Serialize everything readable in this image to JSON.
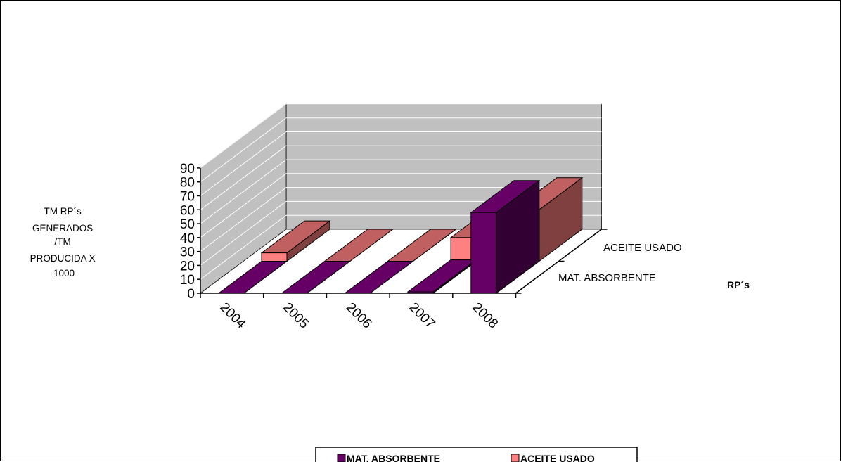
{
  "chart_data": {
    "type": "bar",
    "projection": "3d-stacked-rows",
    "title": "",
    "categories": [
      "2004",
      "2005",
      "2006",
      "2007",
      "2008"
    ],
    "ylabel_lines": [
      "TM RP´s",
      "GENERADOS",
      "/TM",
      "PRODUCIDA X",
      "1000"
    ],
    "zlabel": "RP´s",
    "series_axis_labels": [
      "ACEITE USADO",
      "MAT. ABSORBENTE"
    ],
    "y_ticks": [
      "0",
      "10",
      "20",
      "30",
      "40",
      "50",
      "60",
      "70",
      "80",
      "90"
    ],
    "ylim": [
      0,
      90
    ],
    "series": [
      {
        "name": "MAT. ABSORBENTE",
        "color": "#660066",
        "values": [
          0,
          0,
          0,
          1,
          58
        ]
      },
      {
        "name": "ACEITE USADO",
        "color": "#ff8080",
        "values": [
          6,
          0,
          0,
          17,
          37
        ]
      }
    ],
    "legend": {
      "position": "bottom",
      "entries": [
        "MAT. ABSORBENTE",
        "ACEITE USADO"
      ]
    },
    "colors": {
      "wall": "#c0c0c0",
      "series1_front": "#660066",
      "series1_side": "#330033",
      "series2_front": "#ff8080",
      "series2_top": "#c06060",
      "series2_side": "#804040"
    }
  }
}
